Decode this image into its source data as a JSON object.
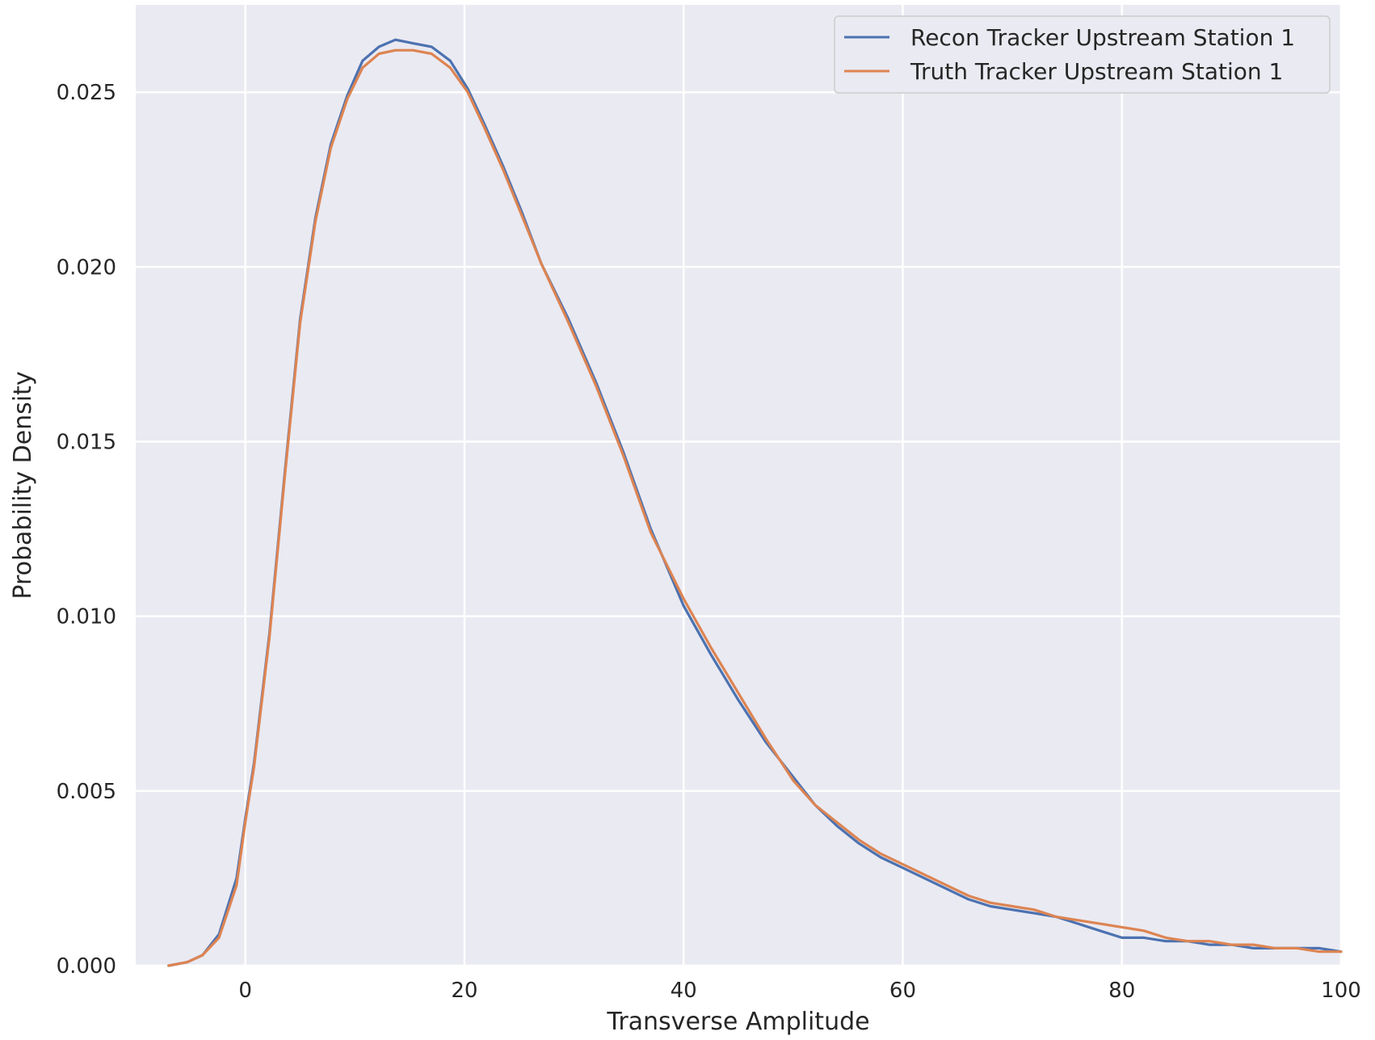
{
  "chart_data": {
    "type": "line",
    "title": "",
    "xlabel": "Transverse Amplitude",
    "ylabel": "Probability Density",
    "xlim": [
      -10,
      100
    ],
    "ylim": [
      0,
      0.0275
    ],
    "xticks": [
      0,
      20,
      40,
      60,
      80,
      100
    ],
    "xtick_labels": [
      "0",
      "20",
      "40",
      "60",
      "80",
      "100"
    ],
    "yticks": [
      0.0,
      0.005,
      0.01,
      0.015,
      0.02,
      0.025
    ],
    "ytick_labels": [
      "0.000",
      "0.005",
      "0.010",
      "0.015",
      "0.020",
      "0.025"
    ],
    "grid": true,
    "legend_position": "top-right",
    "series": [
      {
        "name": "Recon Tracker Upstream Station 1",
        "color": "#4c72b0",
        "x": [
          -7,
          -5.3,
          -3.9,
          -2.4,
          -0.8,
          0,
          0.8,
          2.2,
          3.6,
          5,
          6.4,
          7.8,
          9.3,
          10.7,
          12.2,
          13.7,
          15.3,
          17,
          18.7,
          20.3,
          21.8,
          23.5,
          25.2,
          27,
          29.5,
          32,
          34.5,
          37,
          40,
          42.5,
          45,
          47.5,
          50,
          52,
          54,
          56,
          58,
          60,
          62,
          64,
          66,
          68,
          70,
          72,
          74,
          76,
          78,
          80,
          82,
          84,
          86,
          88,
          90,
          92,
          94,
          96,
          98,
          100
        ],
        "y": [
          0.0,
          0.0001,
          0.0003,
          0.0009,
          0.0025,
          0.0042,
          0.0058,
          0.0095,
          0.0141,
          0.0185,
          0.0214,
          0.0235,
          0.0249,
          0.0259,
          0.0263,
          0.0265,
          0.0264,
          0.0263,
          0.0259,
          0.0251,
          0.0241,
          0.0229,
          0.0216,
          0.0201,
          0.0185,
          0.0167,
          0.0147,
          0.0125,
          0.0103,
          0.0089,
          0.0076,
          0.0064,
          0.0054,
          0.0046,
          0.004,
          0.0035,
          0.0031,
          0.0028,
          0.0025,
          0.0022,
          0.0019,
          0.0017,
          0.0016,
          0.0015,
          0.0014,
          0.0012,
          0.001,
          0.0008,
          0.0008,
          0.0007,
          0.0007,
          0.0006,
          0.0006,
          0.0005,
          0.0005,
          0.0005,
          0.0005,
          0.0004
        ]
      },
      {
        "name": "Truth Tracker Upstream Station 1",
        "color": "#dd8452",
        "x": [
          -7,
          -5.3,
          -3.9,
          -2.4,
          -0.8,
          0,
          0.8,
          2.2,
          3.6,
          5,
          6.4,
          7.8,
          9.3,
          10.7,
          12.2,
          13.7,
          15.3,
          17,
          18.7,
          20.3,
          21.8,
          23.5,
          25.2,
          27,
          29.5,
          32,
          34.5,
          37,
          40,
          42.5,
          45,
          47.5,
          50,
          52,
          54,
          56,
          58,
          60,
          62,
          64,
          66,
          68,
          70,
          72,
          74,
          76,
          78,
          80,
          82,
          84,
          86,
          88,
          90,
          92,
          94,
          96,
          98,
          100
        ],
        "y": [
          0.0,
          0.0001,
          0.0003,
          0.0008,
          0.0023,
          0.0041,
          0.0057,
          0.0094,
          0.014,
          0.0184,
          0.0213,
          0.0234,
          0.0248,
          0.0257,
          0.0261,
          0.0262,
          0.0262,
          0.0261,
          0.0257,
          0.025,
          0.024,
          0.0228,
          0.0215,
          0.0201,
          0.0184,
          0.0166,
          0.0146,
          0.0124,
          0.0105,
          0.0091,
          0.0078,
          0.0065,
          0.0053,
          0.0046,
          0.0041,
          0.0036,
          0.0032,
          0.0029,
          0.0026,
          0.0023,
          0.002,
          0.0018,
          0.0017,
          0.0016,
          0.0014,
          0.0013,
          0.0012,
          0.0011,
          0.001,
          0.0008,
          0.0007,
          0.0007,
          0.0006,
          0.0006,
          0.0005,
          0.0005,
          0.0004,
          0.0004
        ]
      }
    ]
  }
}
